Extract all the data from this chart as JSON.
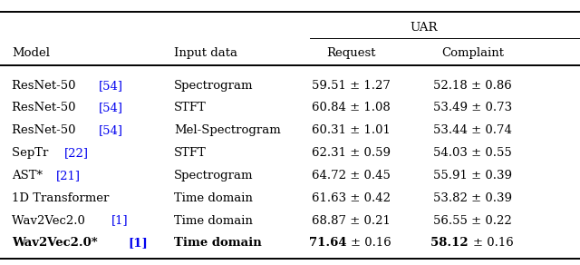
{
  "col_headers_left": [
    "Model",
    "Input data"
  ],
  "uar_header": "UAR",
  "sub_headers": [
    "Request",
    "Complaint"
  ],
  "rows": [
    {
      "model_plain": "ResNet-50 ",
      "model_ref": "[54]",
      "input": "Spectrogram",
      "request": "59.51 ± 1.27",
      "complaint": "52.18 ± 0.86",
      "bold": false
    },
    {
      "model_plain": "ResNet-50 ",
      "model_ref": "[54]",
      "input": "STFT",
      "request": "60.84 ± 1.08",
      "complaint": "53.49 ± 0.73",
      "bold": false
    },
    {
      "model_plain": "ResNet-50 ",
      "model_ref": "[54]",
      "input": "Mel-Spectrogram",
      "request": "60.31 ± 1.01",
      "complaint": "53.44 ± 0.74",
      "bold": false
    },
    {
      "model_plain": "SepTr ",
      "model_ref": "[22]",
      "input": "STFT",
      "request": "62.31 ± 0.59",
      "complaint": "54.03 ± 0.55",
      "bold": false
    },
    {
      "model_plain": "AST* ",
      "model_ref": "[21]",
      "input": "Spectrogram",
      "request": "64.72 ± 0.45",
      "complaint": "55.91 ± 0.39",
      "bold": false
    },
    {
      "model_plain": "1D Transformer",
      "model_ref": null,
      "input": "Time domain",
      "request": "61.63 ± 0.42",
      "complaint": "53.82 ± 0.39",
      "bold": false
    },
    {
      "model_plain": "Wav2Vec2.0 ",
      "model_ref": "[1]",
      "input": "Time domain",
      "request": "68.87 ± 0.21",
      "complaint": "56.55 ± 0.22",
      "bold": false
    },
    {
      "model_plain": "Wav2Vec2.0* ",
      "model_ref": "[1]",
      "input": "Time domain",
      "request": "71.64 ± 0.16",
      "complaint": "58.12 ± 0.16",
      "bold": true
    }
  ],
  "ref_color": "#0000EE",
  "header_color": "#000000",
  "bg_color": "#FFFFFF",
  "fontsize": 9.5,
  "fig_width": 6.4,
  "fig_height": 2.92,
  "dpi": 100
}
